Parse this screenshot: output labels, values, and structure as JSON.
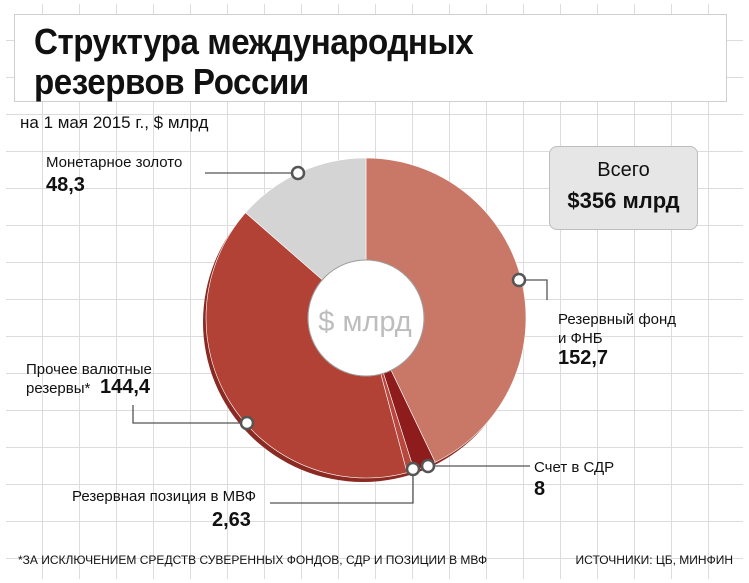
{
  "header": {
    "title_line1": "Структура международных",
    "title_line2": "резервов России",
    "subtitle": "на 1 мая 2015 г., $ млрд"
  },
  "total": {
    "label": "Всего",
    "value": "$356 млрд"
  },
  "center_label": "$ млрд",
  "labels": {
    "gold": "Монетарное золото",
    "gold_value": "48,3",
    "reserve_fund_line1": "Резервный фонд",
    "reserve_fund_line2": "и ФНБ",
    "reserve_fund_value": "152,7",
    "sdr": "Счет в СДР",
    "sdr_value": "8",
    "imf": "Резервная позиция в МВФ",
    "imf_value": "2,63",
    "other_line1": "Прочее валютные",
    "other_line2": "резервы*",
    "other_value": "144,4"
  },
  "footnote": "*ЗА ИСКЛЮЧЕНИЕМ СРЕДСТВ СУВЕРЕННЫХ ФОНДОВ, СДР И ПОЗИЦИИ В МВФ",
  "source": "ИСТОЧНИКИ: ЦБ, МИНФИН",
  "chart_data": {
    "type": "pie",
    "title": "Структура международных резервов России",
    "subtitle": "на 1 мая 2015 г., $ млрд",
    "total": 356,
    "categories": [
      "Резервный фонд и ФНБ",
      "Счет в СДР",
      "Резервная позиция в МВФ",
      "Прочее валютные резервы*",
      "Монетарное золото"
    ],
    "values": [
      152.7,
      8,
      2.63,
      144.4,
      48.3
    ],
    "colors": [
      "#c97767",
      "#8e1c1c",
      "#b8473d",
      "#b24235",
      "#d4d4d4"
    ]
  }
}
